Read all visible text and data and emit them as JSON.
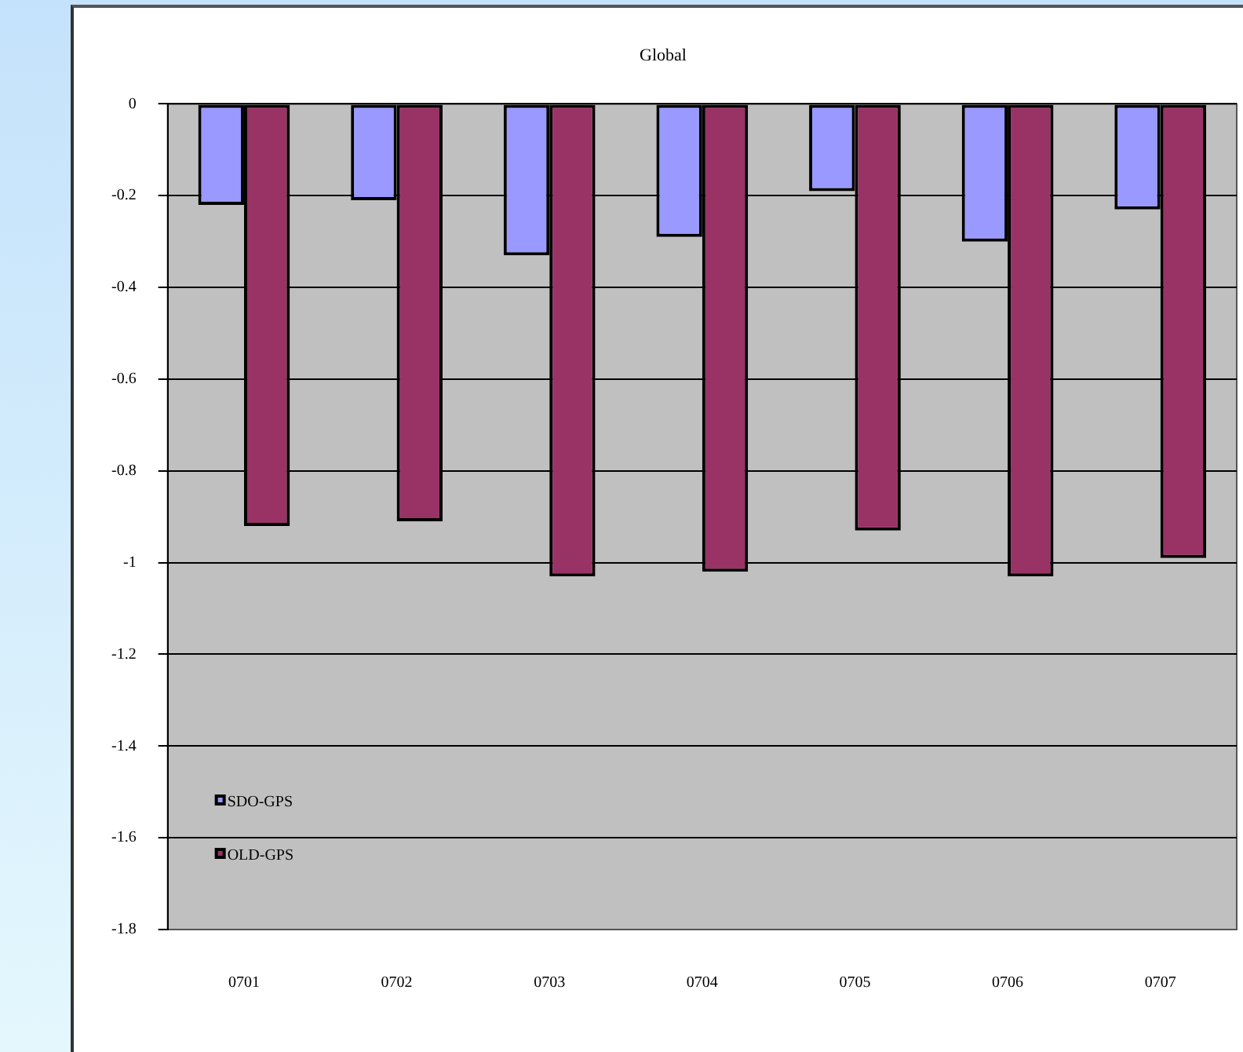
{
  "chart_data": {
    "type": "bar",
    "title": "Global",
    "categories": [
      "0701",
      "0702",
      "0703",
      "0704",
      "0705",
      "0706",
      "0707"
    ],
    "series": [
      {
        "name": "SDO-GPS",
        "color": "#9999ff",
        "values": [
          -0.22,
          -0.21,
          -0.33,
          -0.29,
          -0.19,
          -0.3,
          -0.23
        ]
      },
      {
        "name": "OLD-GPS",
        "color": "#993366",
        "values": [
          -0.92,
          -0.91,
          -1.03,
          -1.02,
          -0.93,
          -1.03,
          -0.99
        ]
      }
    ],
    "ylim": [
      -1.8,
      0
    ],
    "yticks": [
      -1.8,
      -1.6,
      -1.4,
      -1.2,
      -1,
      -0.8,
      -0.6,
      -0.4,
      -0.2,
      0
    ],
    "grid": "y",
    "legend": "bottom left"
  }
}
